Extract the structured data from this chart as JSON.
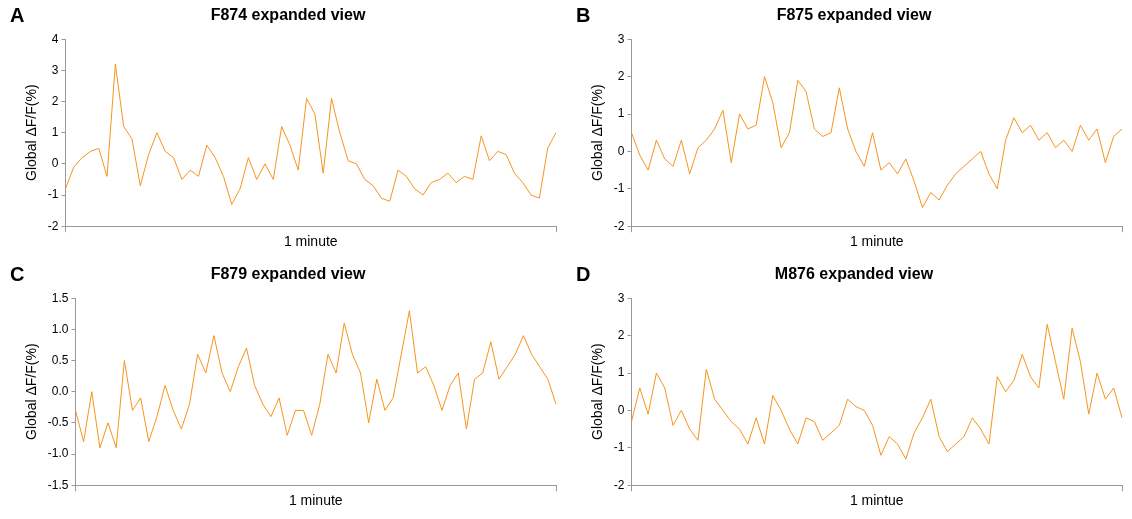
{
  "chart_data": [
    {
      "type": "line",
      "title": "F874 expanded view",
      "xlabel": "1 minute",
      "ylabel": "Global ΔF/F(%)",
      "annotations": [
        "A"
      ],
      "categories": [
        null,
        null,
        null,
        null,
        null,
        null,
        null,
        null,
        null,
        null,
        null,
        null,
        null,
        null,
        null,
        null,
        null,
        null,
        null,
        null,
        null,
        null,
        null,
        null,
        null,
        null,
        null,
        null,
        null,
        null,
        null,
        null,
        null,
        null,
        null,
        null,
        null,
        null,
        null,
        null,
        null,
        null,
        null,
        null,
        null,
        null,
        null,
        null,
        null,
        null,
        null,
        null,
        null,
        null,
        null,
        null,
        null,
        null,
        null,
        null
      ],
      "series": [
        {
          "color": "#f7941d",
          "values": [
            -0.8,
            -0.1,
            0.2,
            0.4,
            0.5,
            -0.4,
            3.2,
            1.2,
            0.8,
            -0.7,
            0.3,
            1.0,
            0.4,
            0.2,
            -0.5,
            -0.2,
            -0.4,
            0.6,
            0.2,
            -0.4,
            -1.3,
            -0.8,
            0.2,
            -0.5,
            0.0,
            -0.5,
            1.2,
            0.6,
            -0.2,
            2.1,
            1.6,
            -0.3,
            2.1,
            1.0,
            0.1,
            0.0,
            -0.5,
            -0.7,
            -1.1,
            -1.2,
            -0.2,
            -0.4,
            -0.8,
            -1.0,
            -0.6,
            -0.5,
            -0.3,
            -0.6,
            -0.4,
            -0.5,
            0.9,
            0.1,
            0.4,
            0.3,
            -0.3,
            -0.6,
            -1.0,
            -1.1,
            0.5,
            1.0
          ]
        }
      ],
      "ylim": [
        -2,
        4
      ],
      "yticks": [
        -2,
        -1,
        0,
        1,
        2,
        3,
        4
      ],
      "tick_labels": "y",
      "grid": false,
      "legend": false,
      "marker": "none",
      "line_style": "solid"
    },
    {
      "type": "line",
      "title": "F875 expanded view",
      "xlabel": "1 minute",
      "ylabel": "Global ΔF/F(%)",
      "annotations": [
        "B"
      ],
      "categories": [
        null,
        null,
        null,
        null,
        null,
        null,
        null,
        null,
        null,
        null,
        null,
        null,
        null,
        null,
        null,
        null,
        null,
        null,
        null,
        null,
        null,
        null,
        null,
        null,
        null,
        null,
        null,
        null,
        null,
        null,
        null,
        null,
        null,
        null,
        null,
        null,
        null,
        null,
        null,
        null,
        null,
        null,
        null,
        null,
        null,
        null,
        null,
        null,
        null,
        null,
        null,
        null,
        null,
        null,
        null,
        null,
        null,
        null,
        null,
        null
      ],
      "series": [
        {
          "color": "#f7941d",
          "values": [
            0.5,
            -0.1,
            -0.5,
            0.3,
            -0.2,
            -0.4,
            0.3,
            -0.6,
            0.1,
            0.3,
            0.6,
            1.1,
            -0.3,
            1.0,
            0.6,
            0.7,
            2.0,
            1.3,
            0.1,
            0.5,
            1.9,
            1.6,
            0.6,
            0.4,
            0.5,
            1.7,
            0.6,
            0.0,
            -0.4,
            0.5,
            -0.5,
            -0.3,
            -0.6,
            -0.2,
            -0.8,
            -1.5,
            -1.1,
            -1.3,
            -0.9,
            -0.6,
            -0.4,
            -0.2,
            0.0,
            -0.6,
            -1.0,
            0.3,
            0.9,
            0.5,
            0.7,
            0.3,
            0.5,
            0.1,
            0.3,
            0.0,
            0.7,
            0.3,
            0.6,
            -0.3,
            0.4,
            0.6
          ]
        }
      ],
      "ylim": [
        -2,
        3
      ],
      "yticks": [
        -2,
        -1,
        0,
        1,
        2,
        3
      ],
      "tick_labels": "y",
      "grid": false,
      "legend": false,
      "marker": "none",
      "line_style": "solid"
    },
    {
      "type": "line",
      "title": "F879 expanded view",
      "xlabel": "1 minute",
      "ylabel": "Global ΔF/F(%)",
      "annotations": [
        "C"
      ],
      "categories": [
        null,
        null,
        null,
        null,
        null,
        null,
        null,
        null,
        null,
        null,
        null,
        null,
        null,
        null,
        null,
        null,
        null,
        null,
        null,
        null,
        null,
        null,
        null,
        null,
        null,
        null,
        null,
        null,
        null,
        null,
        null,
        null,
        null,
        null,
        null,
        null,
        null,
        null,
        null,
        null,
        null,
        null,
        null,
        null,
        null,
        null,
        null,
        null,
        null,
        null,
        null,
        null,
        null,
        null,
        null,
        null,
        null,
        null,
        null,
        null
      ],
      "series": [
        {
          "color": "#f7941d",
          "values": [
            -0.3,
            -0.8,
            0.0,
            -0.9,
            -0.5,
            -0.9,
            0.5,
            -0.3,
            -0.1,
            -0.8,
            -0.4,
            0.1,
            -0.3,
            -0.6,
            -0.2,
            0.6,
            0.3,
            0.9,
            0.3,
            0.0,
            0.4,
            0.7,
            0.1,
            -0.2,
            -0.4,
            -0.1,
            -0.7,
            -0.3,
            -0.3,
            -0.7,
            -0.2,
            0.6,
            0.3,
            1.1,
            0.6,
            0.3,
            -0.5,
            0.2,
            -0.3,
            -0.1,
            0.6,
            1.3,
            0.3,
            0.4,
            0.1,
            -0.3,
            0.1,
            0.3,
            -0.6,
            0.2,
            0.3,
            0.8,
            0.2,
            0.4,
            0.6,
            0.9,
            0.6,
            0.4,
            0.2,
            -0.2
          ]
        }
      ],
      "ylim": [
        -1.5,
        1.5
      ],
      "yticks": [
        {
          "value": -1.5,
          "label": "-1.5"
        },
        {
          "value": -1,
          "label": "-1.0"
        },
        {
          "value": -0.5,
          "label": "-0.5"
        },
        {
          "value": 0,
          "label": "0.0"
        },
        {
          "value": 0.5,
          "label": "0.5"
        },
        {
          "value": 1,
          "label": "1.0"
        },
        {
          "value": 1.5,
          "label": "1.5"
        }
      ],
      "tick_labels": "y",
      "grid": false,
      "legend": false,
      "marker": "none",
      "line_style": "solid"
    },
    {
      "type": "line",
      "title": "M876 expanded view",
      "xlabel": "1 mintue",
      "ylabel": "Global ΔF/F(%)",
      "annotations": [
        "D"
      ],
      "categories": [
        null,
        null,
        null,
        null,
        null,
        null,
        null,
        null,
        null,
        null,
        null,
        null,
        null,
        null,
        null,
        null,
        null,
        null,
        null,
        null,
        null,
        null,
        null,
        null,
        null,
        null,
        null,
        null,
        null,
        null,
        null,
        null,
        null,
        null,
        null,
        null,
        null,
        null,
        null,
        null,
        null,
        null,
        null,
        null,
        null,
        null,
        null,
        null,
        null,
        null,
        null,
        null,
        null,
        null,
        null,
        null,
        null,
        null,
        null,
        null
      ],
      "series": [
        {
          "color": "#f7941d",
          "values": [
            -0.3,
            0.6,
            -0.1,
            1.0,
            0.6,
            -0.4,
            0.0,
            -0.5,
            -0.8,
            1.1,
            0.3,
            0.0,
            -0.3,
            -0.5,
            -0.9,
            -0.2,
            -0.9,
            0.4,
            0.0,
            -0.5,
            -0.9,
            -0.2,
            -0.3,
            -0.8,
            -0.6,
            -0.4,
            0.3,
            0.1,
            0.0,
            -0.4,
            -1.2,
            -0.7,
            -0.9,
            -1.3,
            -0.6,
            -0.2,
            0.3,
            -0.7,
            -1.1,
            -0.9,
            -0.7,
            -0.2,
            -0.5,
            -0.9,
            0.9,
            0.5,
            0.8,
            1.5,
            0.9,
            0.6,
            2.3,
            1.3,
            0.3,
            2.2,
            1.3,
            -0.1,
            1.0,
            0.3,
            0.6,
            -0.2
          ]
        }
      ],
      "ylim": [
        -2,
        3
      ],
      "yticks": [
        -2,
        -1,
        0,
        1,
        2,
        3
      ],
      "tick_labels": "y",
      "grid": false,
      "legend": false,
      "marker": "none",
      "line_style": "solid"
    }
  ]
}
